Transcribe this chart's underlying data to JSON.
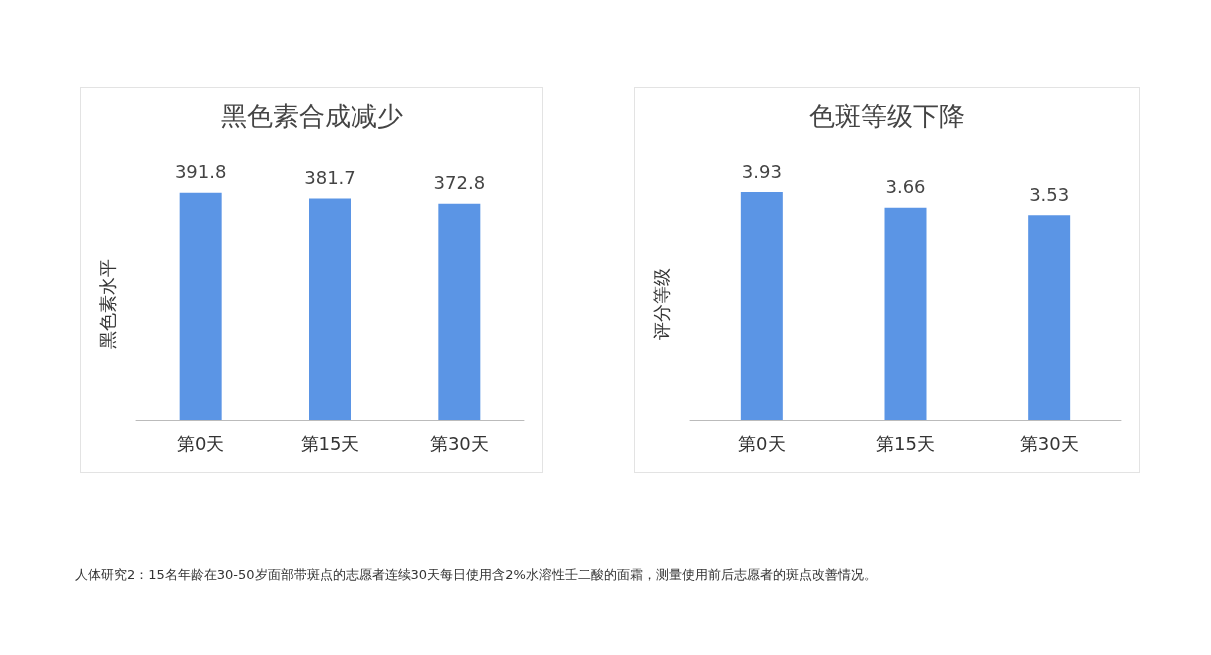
{
  "chart_data": [
    {
      "type": "bar",
      "title": "黑色素合成减少",
      "ylabel": "黑色素水平",
      "categories": [
        "第0天",
        "第15天",
        "第30天"
      ],
      "values": [
        391.8,
        381.7,
        372.8
      ],
      "color": "#5b95e5",
      "data_labels": true,
      "grid": false,
      "tick_labels": "x",
      "annotations": [
        "人体研究2：15名年龄在30-50岁面部带斑点的志愿者连续30天每日使用含2%水溶性壬二酸的面霜，测量使用前后志愿者的斑点改善情况。"
      ]
    },
    {
      "type": "bar",
      "title": "色斑等级下降",
      "ylabel": "评分等级",
      "categories": [
        "第0天",
        "第15天",
        "第30天"
      ],
      "values": [
        3.93,
        3.66,
        3.53
      ],
      "color": "#5b95e5",
      "data_labels": true,
      "grid": false,
      "tick_labels": "x"
    }
  ]
}
